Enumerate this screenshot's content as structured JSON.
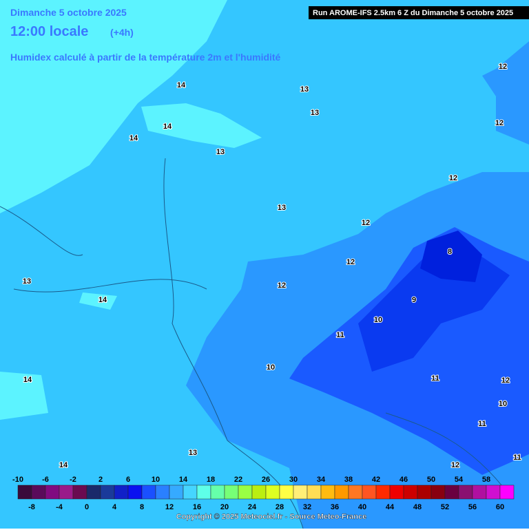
{
  "header": {
    "date": "Dimanche 5 octobre 2025",
    "time": "12:00 locale",
    "offset": "(+4h)",
    "subtitle": "Humidex calculé à partir de la température 2m et l'humidité",
    "run": "Run AROME-IFS 2.5km 6 Z du Dimanche 5 octobre 2025"
  },
  "contour_labels": [
    "14",
    "13",
    "13",
    "12",
    "12",
    "14",
    "14",
    "13",
    "12",
    "13",
    "12",
    "8",
    "12",
    "13",
    "12",
    "14",
    "9",
    "10",
    "11",
    "10",
    "11",
    "14",
    "12",
    "10",
    "11",
    "13",
    "14",
    "12",
    "11"
  ],
  "scale": {
    "top_labels": [
      -10,
      -6,
      -2,
      2,
      6,
      10,
      14,
      18,
      22,
      26,
      30,
      34,
      38,
      42,
      46,
      50,
      54,
      58
    ],
    "bottom_labels": [
      -8,
      -4,
      0,
      4,
      8,
      12,
      16,
      20,
      24,
      28,
      32,
      36,
      40,
      44,
      48,
      52,
      56,
      60
    ],
    "colors": [
      "#3a0a3a",
      "#5a0a5a",
      "#800a80",
      "#9a1a8a",
      "#6a0a50",
      "#1a2a6a",
      "#1a3a9a",
      "#1020c8",
      "#0a10f0",
      "#1a50ff",
      "#2a80ff",
      "#36aaff",
      "#45d5ff",
      "#5effe8",
      "#66ffaa",
      "#77ff77",
      "#99ff44",
      "#bbee11",
      "#ddff22",
      "#ffff44",
      "#ffee77",
      "#ffdd55",
      "#ffbb11",
      "#ff9900",
      "#ff7722",
      "#ff5522",
      "#ff2a00",
      "#ee0000",
      "#cc0000",
      "#aa0000",
      "#880010",
      "#6a0040",
      "#8a1070",
      "#b010a0",
      "#d010d0",
      "#ff00ff"
    ]
  },
  "footer": {
    "copyright": "Copyright © 2025 Meteociel.fr - Source Meteo-France"
  }
}
